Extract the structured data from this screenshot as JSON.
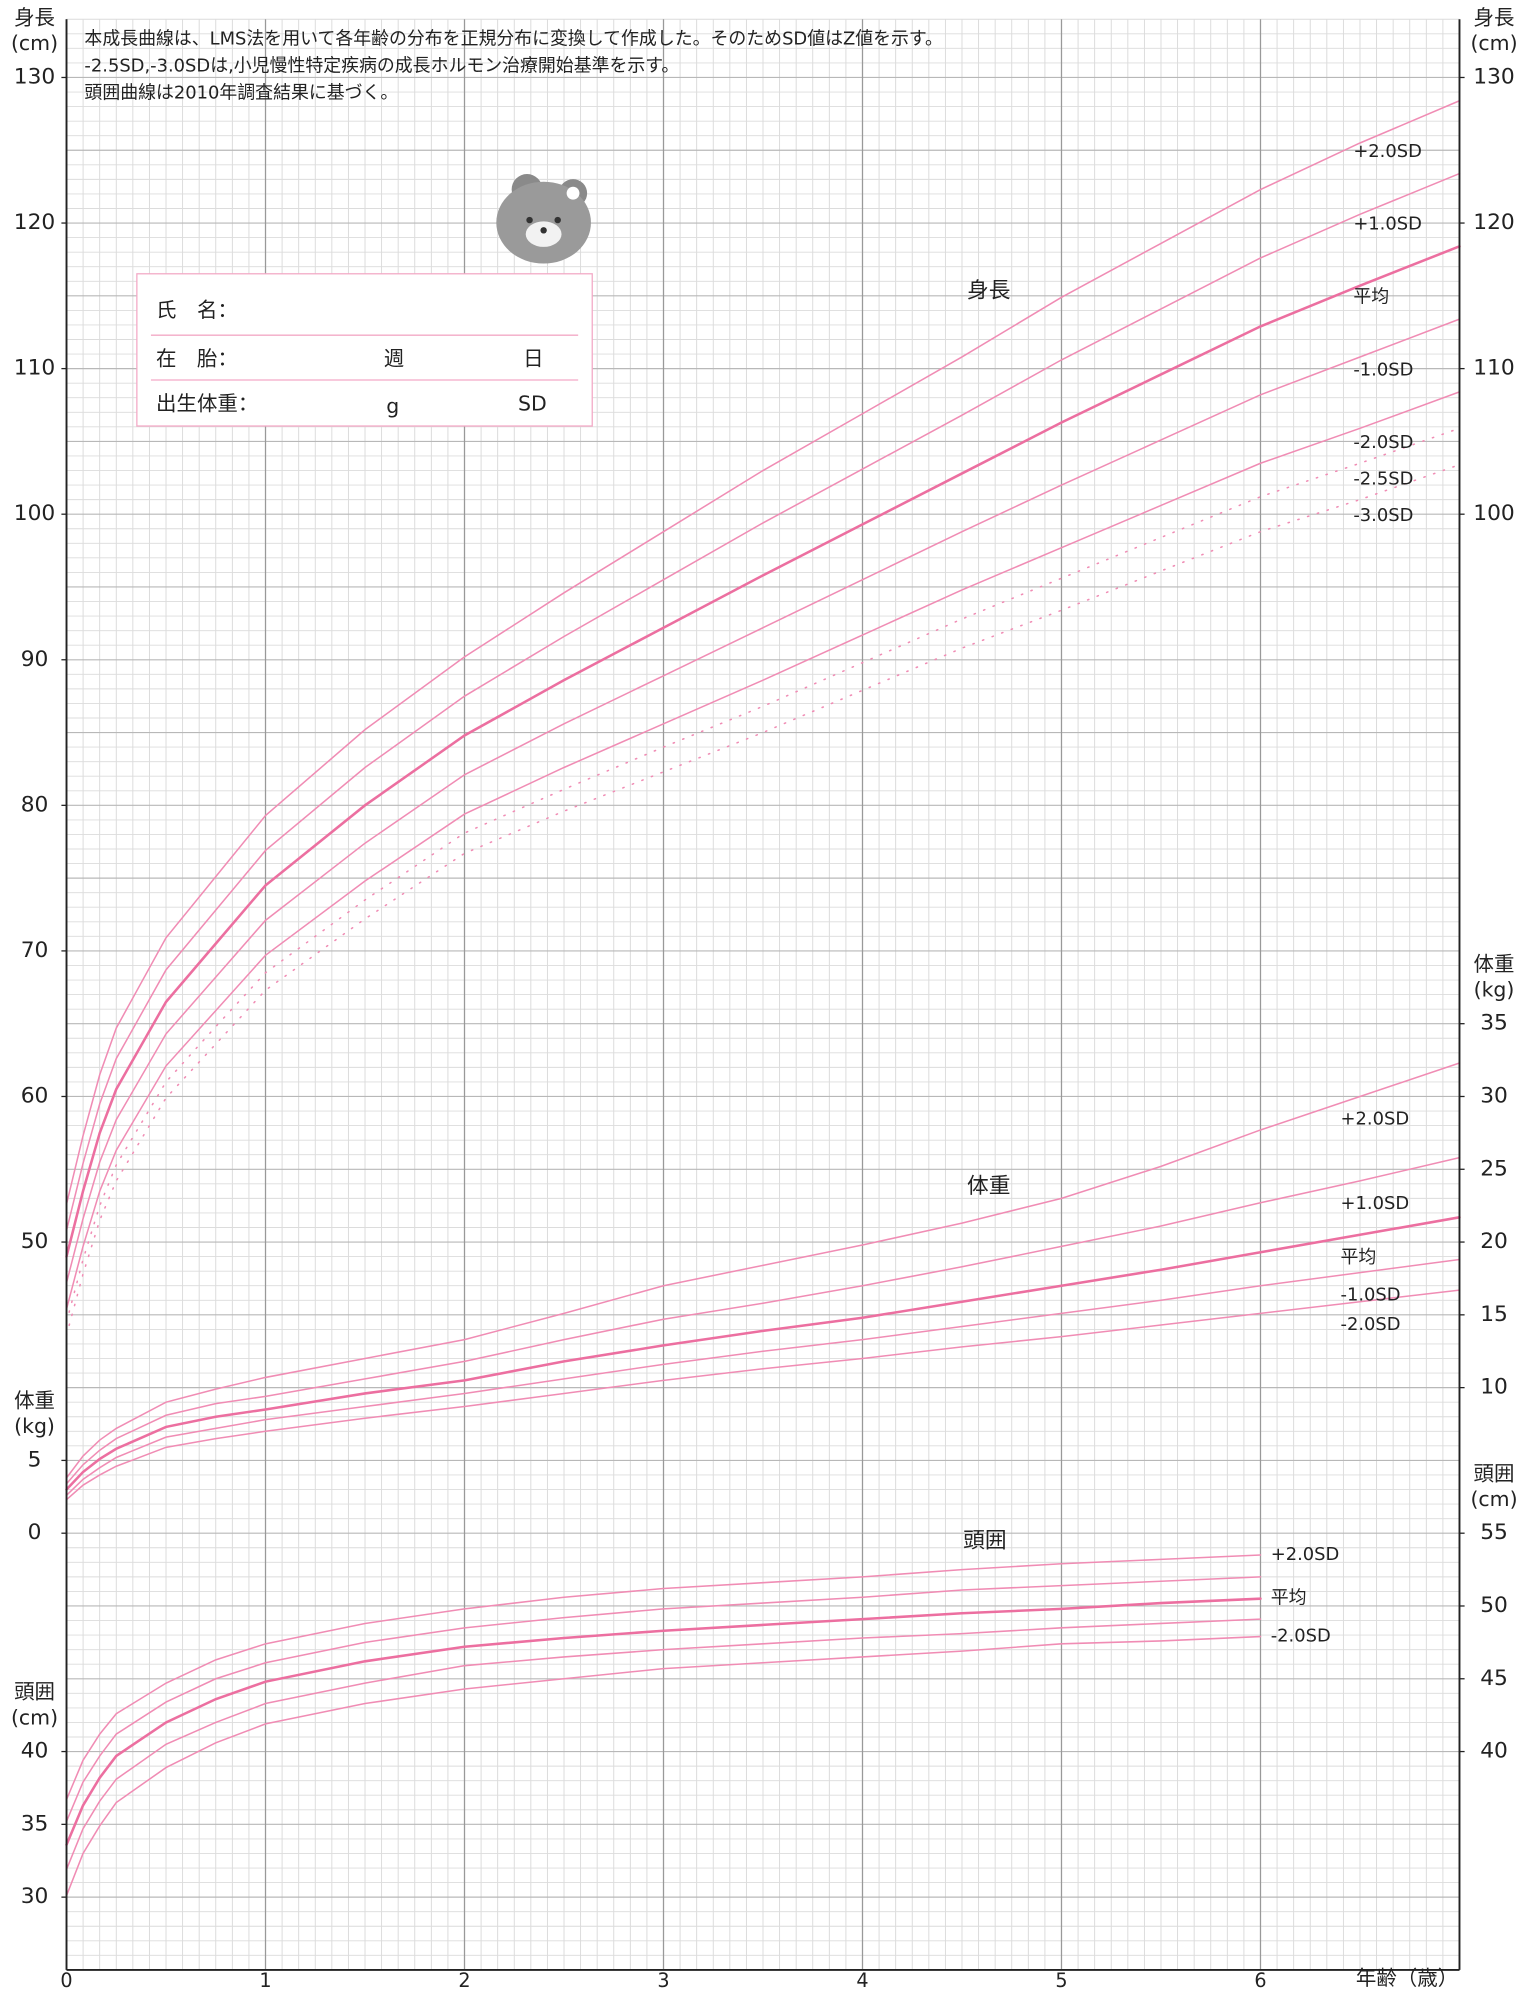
{
  "notes": [
    "本成長曲線は、LMS法を用いて各年齢の分布を正規分布に変換して作成した。そのためSD値はZ値を示す。",
    "-2.5SD,-3.0SDは,小児慢性特定疾病の成長ホルモン治療開始基準を示す。",
    "頭囲曲線は2010年調査結果に基づく。"
  ],
  "form": {
    "name": "氏　名：",
    "gestation": "在　胎：",
    "weeks": "週",
    "days": "日",
    "birth_weight": "出生体重：",
    "grams": "g",
    "sd": "SD"
  },
  "chart_data": [
    {
      "type": "line",
      "title": "身長",
      "ylabel": [
        "身長",
        "(cm)"
      ],
      "xlabel": "年齢（歳）",
      "x": [
        0,
        0.083,
        0.167,
        0.25,
        0.5,
        0.75,
        1,
        1.5,
        2,
        2.5,
        3,
        3.5,
        4,
        4.5,
        5,
        5.5,
        6,
        6.5,
        7
      ],
      "xlim": [
        0,
        7
      ],
      "xticks": [
        0,
        1,
        2,
        3,
        4,
        5,
        6
      ],
      "ylim": [
        0,
        134
      ],
      "yticks": [
        50,
        60,
        70,
        80,
        90,
        100,
        110,
        120,
        130
      ],
      "y2lim": [
        0,
        134
      ],
      "y2ticks": [
        100,
        110,
        120,
        130
      ],
      "grid": {
        "x_divisions": 12,
        "y_step": 1,
        "y_major_step": 5
      },
      "series": [
        {
          "name": "+2.0SD",
          "color": "#f08cb4",
          "values": [
            52.6,
            57.3,
            61.5,
            64.7,
            70.9,
            75.1,
            79.3,
            85.2,
            90.2,
            94.6,
            98.8,
            103.0,
            106.9,
            110.8,
            114.9,
            118.6,
            122.3,
            125.5,
            128.4
          ]
        },
        {
          "name": "+1.0SD",
          "color": "#f08cb4",
          "values": [
            50.8,
            55.4,
            59.5,
            62.6,
            68.7,
            72.8,
            76.9,
            82.6,
            87.5,
            91.6,
            95.5,
            99.4,
            103.1,
            106.8,
            110.6,
            114.1,
            117.6,
            120.6,
            123.4
          ]
        },
        {
          "name": "平均",
          "color": "#ec6fa0",
          "bold": true,
          "values": [
            49.0,
            53.5,
            57.5,
            60.5,
            66.5,
            70.5,
            74.5,
            80.0,
            84.8,
            88.6,
            92.2,
            95.8,
            99.3,
            102.8,
            106.3,
            109.6,
            112.9,
            115.7,
            118.4
          ]
        },
        {
          "name": "-1.0SD",
          "color": "#f08cb4",
          "values": [
            47.2,
            51.6,
            55.5,
            58.4,
            64.3,
            68.2,
            72.1,
            77.4,
            82.1,
            85.6,
            88.9,
            92.2,
            95.5,
            98.8,
            102.0,
            105.1,
            108.2,
            110.8,
            113.4
          ]
        },
        {
          "name": "-2.0SD",
          "color": "#f08cb4",
          "values": [
            45.4,
            49.7,
            53.5,
            56.3,
            62.1,
            65.9,
            69.7,
            74.8,
            79.4,
            82.6,
            85.6,
            88.6,
            91.7,
            94.8,
            97.7,
            100.6,
            103.5,
            105.9,
            108.4
          ]
        },
        {
          "name": "-2.5SD",
          "color": "#f08cb4",
          "dotted": true,
          "values": [
            44.5,
            48.8,
            52.5,
            55.3,
            61.0,
            64.8,
            68.5,
            73.5,
            78.1,
            81.1,
            84.0,
            86.8,
            89.8,
            92.8,
            95.6,
            98.4,
            101.2,
            103.5,
            105.9
          ]
        },
        {
          "name": "-3.0SD",
          "color": "#f08cb4",
          "dotted": true,
          "values": [
            43.6,
            47.8,
            51.5,
            54.2,
            59.9,
            63.6,
            67.3,
            72.2,
            76.7,
            79.6,
            82.3,
            85.0,
            87.9,
            90.8,
            93.4,
            96.1,
            98.8,
            101.0,
            103.4
          ]
        }
      ]
    },
    {
      "type": "line",
      "title": "体重",
      "ylabel": [
        "体重",
        "(kg)"
      ],
      "x": [
        0,
        0.083,
        0.167,
        0.25,
        0.5,
        0.75,
        1,
        1.5,
        2,
        2.5,
        3,
        3.5,
        4,
        4.5,
        5,
        5.5,
        6,
        6.5,
        7
      ],
      "xlim": [
        0,
        7
      ],
      "ylim": [
        -30,
        104
      ],
      "yticks": [
        0,
        5
      ],
      "y2lim": [
        -30,
        104
      ],
      "y2ticks": [
        10,
        15,
        20,
        25,
        30,
        35
      ],
      "series": [
        {
          "name": "+2.0SD",
          "color": "#f08cb4",
          "values": [
            3.8,
            5.3,
            6.4,
            7.2,
            9.0,
            9.9,
            10.7,
            12.0,
            13.3,
            15.1,
            17.0,
            18.4,
            19.8,
            21.3,
            23.0,
            25.2,
            27.7,
            30.0,
            32.3
          ]
        },
        {
          "name": "+1.0SD",
          "color": "#f08cb4",
          "values": [
            3.4,
            4.7,
            5.7,
            6.5,
            8.1,
            8.9,
            9.4,
            10.6,
            11.8,
            13.3,
            14.7,
            15.8,
            17.0,
            18.3,
            19.7,
            21.1,
            22.7,
            24.2,
            25.8
          ]
        },
        {
          "name": "平均",
          "color": "#ec6fa0",
          "bold": true,
          "values": [
            3.0,
            4.2,
            5.1,
            5.8,
            7.3,
            8.0,
            8.5,
            9.6,
            10.5,
            11.8,
            12.9,
            13.9,
            14.8,
            15.9,
            17.0,
            18.1,
            19.3,
            20.5,
            21.7
          ]
        },
        {
          "name": "-1.0SD",
          "color": "#f08cb4",
          "values": [
            2.6,
            3.7,
            4.5,
            5.2,
            6.6,
            7.2,
            7.8,
            8.7,
            9.6,
            10.6,
            11.6,
            12.5,
            13.3,
            14.2,
            15.1,
            16.0,
            17.0,
            17.9,
            18.8
          ]
        },
        {
          "name": "-2.0SD",
          "color": "#f08cb4",
          "values": [
            2.3,
            3.3,
            4.0,
            4.6,
            5.9,
            6.5,
            7.0,
            7.9,
            8.7,
            9.6,
            10.5,
            11.3,
            12.0,
            12.8,
            13.5,
            14.3,
            15.1,
            15.9,
            16.7
          ]
        }
      ]
    },
    {
      "type": "line",
      "title": "頭囲",
      "ylabel": [
        "頭囲",
        "(cm)"
      ],
      "x": [
        0,
        0.083,
        0.167,
        0.25,
        0.5,
        0.75,
        1,
        1.5,
        2,
        2.5,
        3,
        3.5,
        4,
        4.5,
        5,
        5.5,
        6,
        6.5,
        7
      ],
      "xlim": [
        0,
        7
      ],
      "ylim": [
        25,
        159
      ],
      "yticks": [
        30,
        35,
        40
      ],
      "y2lim": [
        25,
        159
      ],
      "y2ticks": [
        40,
        45,
        50,
        55
      ],
      "series": [
        {
          "name": "+2.0SD",
          "color": "#f08cb4",
          "values": [
            36.7,
            39.4,
            41.2,
            42.6,
            44.7,
            46.3,
            47.4,
            48.8,
            49.8,
            50.6,
            51.2,
            51.6,
            52.0,
            52.5,
            52.9,
            53.2,
            53.5,
            null,
            null
          ]
        },
        {
          "name": null,
          "color": "#f08cb4",
          "values": [
            35.2,
            37.9,
            39.7,
            41.2,
            43.4,
            45.0,
            46.1,
            47.5,
            48.5,
            49.2,
            49.8,
            50.2,
            50.6,
            51.1,
            51.4,
            51.7,
            52.0,
            null,
            null
          ]
        },
        {
          "name": "平均",
          "color": "#ec6fa0",
          "bold": true,
          "values": [
            33.6,
            36.3,
            38.2,
            39.7,
            42.0,
            43.6,
            44.8,
            46.2,
            47.2,
            47.8,
            48.3,
            48.7,
            49.1,
            49.5,
            49.8,
            50.2,
            50.5,
            null,
            null
          ]
        },
        {
          "name": null,
          "color": "#f08cb4",
          "values": [
            31.9,
            34.7,
            36.6,
            38.1,
            40.5,
            42.0,
            43.3,
            44.7,
            45.9,
            46.5,
            47.0,
            47.4,
            47.8,
            48.1,
            48.5,
            48.8,
            49.1,
            null,
            null
          ]
        },
        {
          "name": "-2.0SD",
          "color": "#f08cb4",
          "values": [
            30.1,
            33.0,
            34.9,
            36.5,
            38.9,
            40.6,
            41.9,
            43.3,
            44.3,
            45.0,
            45.7,
            46.1,
            46.5,
            46.9,
            47.4,
            47.6,
            47.9,
            null,
            null
          ]
        }
      ]
    }
  ]
}
